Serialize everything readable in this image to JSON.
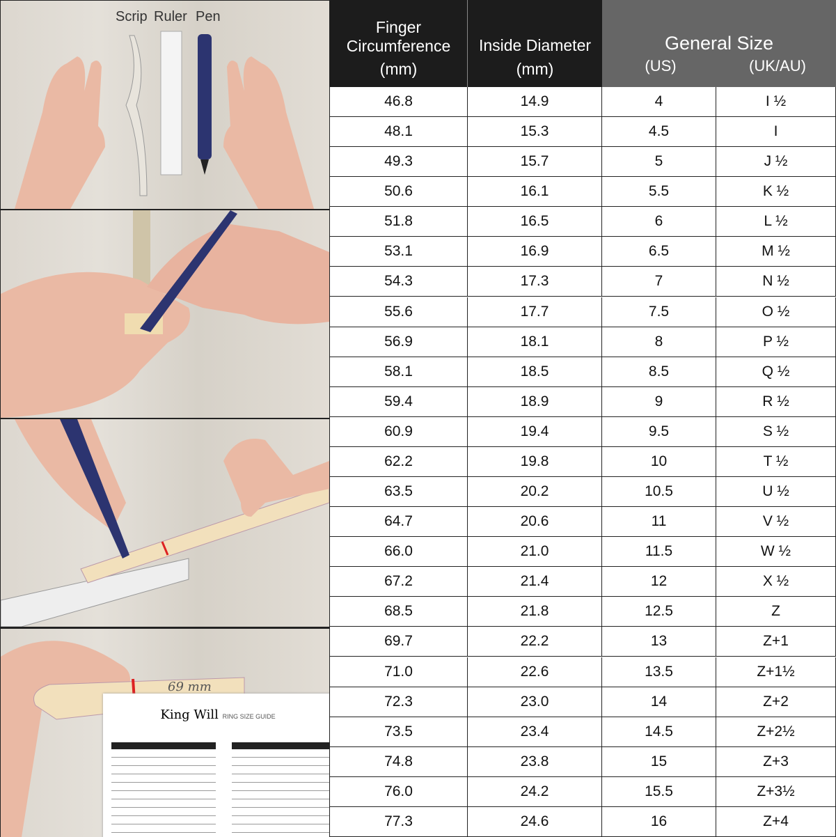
{
  "illustration": {
    "labels": [
      "Scrip",
      "Ruler",
      "Pen"
    ],
    "measure_mark": "69 mm",
    "pen_brand": "King Will",
    "guide_brand": "King Will",
    "guide_title": "RING SIZE GUIDE"
  },
  "table": {
    "headers": {
      "circumference": "Finger Circumference",
      "circumference_unit": "(mm)",
      "diameter": "Inside Diameter",
      "diameter_unit": "(mm)",
      "general": "General Size",
      "us": "(US)",
      "uk": "(UK/AU)"
    },
    "colors": {
      "header_dark": "#1c1c1c",
      "header_gray": "#666666"
    },
    "rows": [
      [
        "46.8",
        "14.9",
        "4",
        "I ½"
      ],
      [
        "48.1",
        "15.3",
        "4.5",
        "I"
      ],
      [
        "49.3",
        "15.7",
        "5",
        "J ½"
      ],
      [
        "50.6",
        "16.1",
        "5.5",
        "K ½"
      ],
      [
        "51.8",
        "16.5",
        "6",
        "L ½"
      ],
      [
        "53.1",
        "16.9",
        "6.5",
        "M ½"
      ],
      [
        "54.3",
        "17.3",
        "7",
        "N ½"
      ],
      [
        "55.6",
        "17.7",
        "7.5",
        "O ½"
      ],
      [
        "56.9",
        "18.1",
        "8",
        "P ½"
      ],
      [
        "58.1",
        "18.5",
        "8.5",
        "Q ½"
      ],
      [
        "59.4",
        "18.9",
        "9",
        "R ½"
      ],
      [
        "60.9",
        "19.4",
        "9.5",
        "S ½"
      ],
      [
        "62.2",
        "19.8",
        "10",
        "T ½"
      ],
      [
        "63.5",
        "20.2",
        "10.5",
        "U ½"
      ],
      [
        "64.7",
        "20.6",
        "11",
        "V ½"
      ],
      [
        "66.0",
        "21.0",
        "11.5",
        "W ½"
      ],
      [
        "67.2",
        "21.4",
        "12",
        "X ½"
      ],
      [
        "68.5",
        "21.8",
        "12.5",
        "Z"
      ],
      [
        "69.7",
        "22.2",
        "13",
        "Z+1"
      ],
      [
        "71.0",
        "22.6",
        "13.5",
        "Z+1½"
      ],
      [
        "72.3",
        "23.0",
        "14",
        "Z+2"
      ],
      [
        "73.5",
        "23.4",
        "14.5",
        "Z+2½"
      ],
      [
        "74.8",
        "23.8",
        "15",
        "Z+3"
      ],
      [
        "76.0",
        "24.2",
        "15.5",
        "Z+3½"
      ],
      [
        "77.3",
        "24.6",
        "16",
        "Z+4"
      ]
    ]
  }
}
